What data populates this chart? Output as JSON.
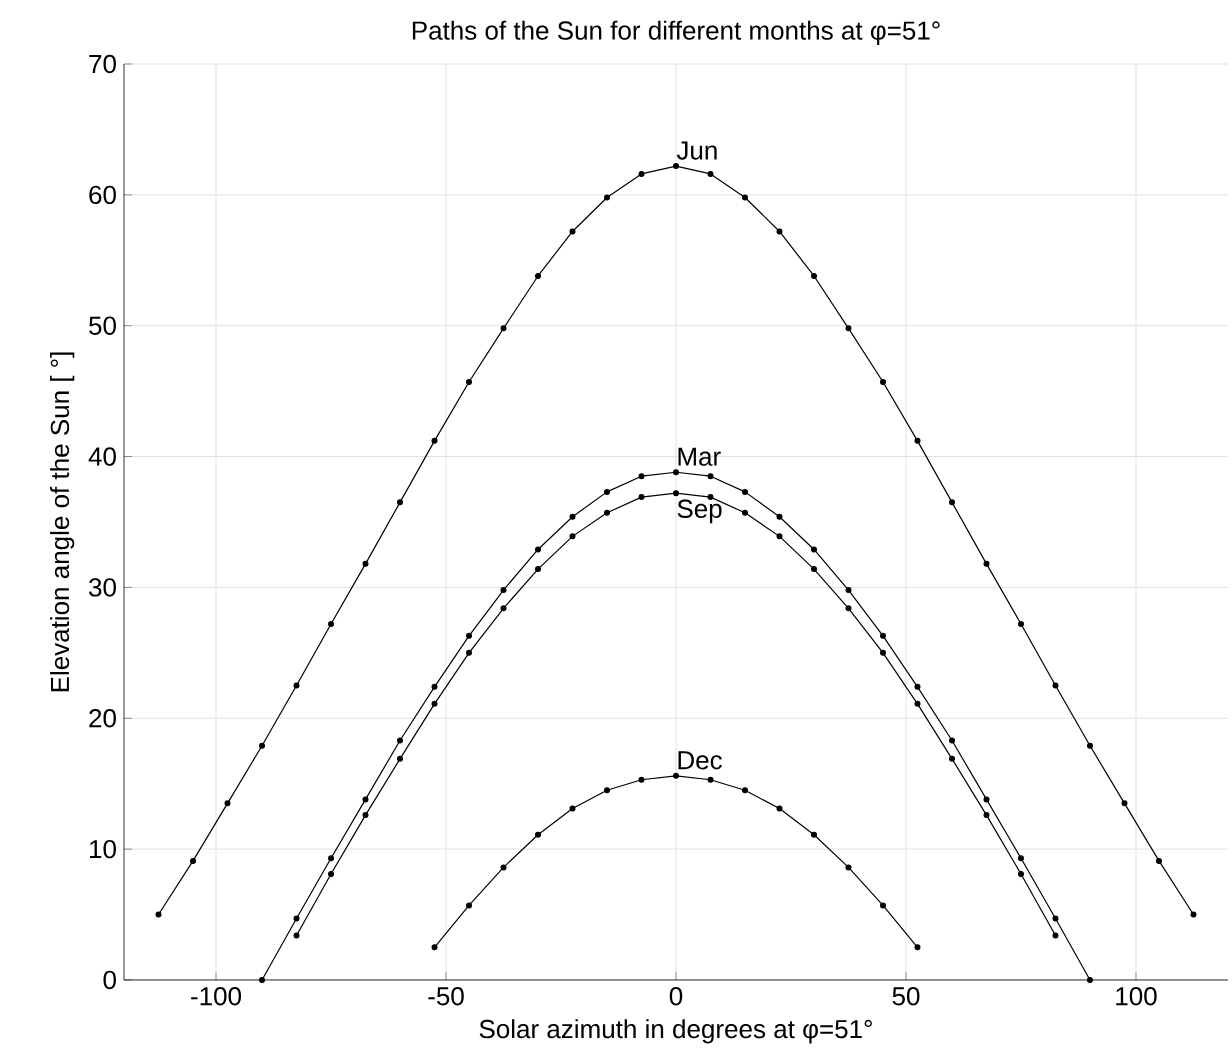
{
  "chart_data": {
    "type": "line",
    "title": "Paths of the Sun for different months at φ=51°",
    "xlabel": "Solar azimuth in degrees at φ=51°",
    "ylabel": "Elevation angle of the Sun [ °]",
    "xlim": [
      -120,
      120
    ],
    "ylim": [
      0,
      70
    ],
    "xticks": [
      -100,
      -50,
      0,
      50,
      100
    ],
    "yticks": [
      0,
      10,
      20,
      30,
      40,
      50,
      60,
      70
    ],
    "grid": true,
    "marker": "circle",
    "line_style": "solid",
    "series": [
      {
        "name": "Jun",
        "color": "#000000",
        "x": [
          -112.5,
          -105,
          -97.5,
          -90,
          -82.5,
          -75,
          -67.5,
          -60,
          -52.5,
          -45,
          -37.5,
          -30,
          -22.5,
          -15,
          -7.5,
          0,
          7.5,
          15,
          22.5,
          30,
          37.5,
          45,
          52.5,
          60,
          67.5,
          75,
          82.5,
          90,
          97.5,
          105,
          112.5
        ],
        "values": [
          5.0,
          9.1,
          13.5,
          17.9,
          22.5,
          27.2,
          31.8,
          36.5,
          41.2,
          45.7,
          49.8,
          53.8,
          57.2,
          59.8,
          61.6,
          62.2,
          61.6,
          59.8,
          57.2,
          53.8,
          49.8,
          45.7,
          41.2,
          36.5,
          31.8,
          27.2,
          22.5,
          17.9,
          13.5,
          9.1,
          5.0
        ]
      },
      {
        "name": "Mar",
        "color": "#000000",
        "x": [
          -90,
          -82.5,
          -75,
          -67.5,
          -60,
          -52.5,
          -45,
          -37.5,
          -30,
          -22.5,
          -15,
          -7.5,
          0,
          7.5,
          15,
          22.5,
          30,
          37.5,
          45,
          52.5,
          60,
          67.5,
          75,
          82.5,
          90
        ],
        "values": [
          0,
          4.7,
          9.3,
          13.8,
          18.3,
          22.4,
          26.3,
          29.8,
          32.9,
          35.4,
          37.3,
          38.5,
          38.8,
          38.5,
          37.3,
          35.4,
          32.9,
          29.8,
          26.3,
          22.4,
          18.3,
          13.8,
          9.3,
          4.7,
          0
        ]
      },
      {
        "name": "Sep",
        "color": "#000000",
        "x": [
          -82.5,
          -75,
          -67.5,
          -60,
          -52.5,
          -45,
          -37.5,
          -30,
          -22.5,
          -15,
          -7.5,
          0,
          7.5,
          15,
          22.5,
          30,
          37.5,
          45,
          52.5,
          60,
          67.5,
          75,
          82.5
        ],
        "values": [
          3.4,
          8.1,
          12.6,
          16.9,
          21.1,
          25.0,
          28.4,
          31.4,
          33.9,
          35.7,
          36.9,
          37.2,
          36.9,
          35.7,
          33.9,
          31.4,
          28.4,
          25.0,
          21.1,
          16.9,
          12.6,
          8.1,
          3.4
        ]
      },
      {
        "name": "Dec",
        "color": "#000000",
        "x": [
          -52.5,
          -45,
          -37.5,
          -30,
          -22.5,
          -15,
          -7.5,
          0,
          7.5,
          15,
          22.5,
          30,
          37.5,
          45,
          52.5
        ],
        "values": [
          2.5,
          5.7,
          8.6,
          11.1,
          13.1,
          14.5,
          15.3,
          15.6,
          15.3,
          14.5,
          13.1,
          11.1,
          8.6,
          5.7,
          2.5
        ]
      }
    ]
  }
}
